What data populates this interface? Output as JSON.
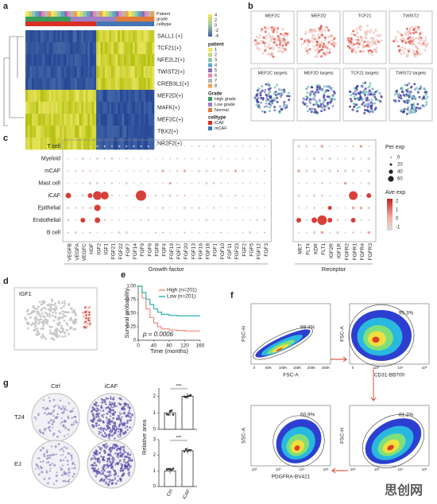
{
  "panels": {
    "a": {
      "label": "a",
      "annotation_labels": [
        "Patient",
        "grade",
        "celltype"
      ],
      "row_labels": [
        "SALL1 (+)",
        "TCF21(+)",
        "NFE2L2(+)",
        "TWIST2(+)",
        "CREB3L1(+)",
        "MEF2D(+)",
        "MAFK(+)",
        "MEF2C(+)",
        "TBX2(+)",
        "NR2F2(+)"
      ],
      "scale_ticks": [
        4,
        2,
        0,
        -2,
        -4
      ],
      "patient_title": "patient",
      "patients": [
        "1",
        "2",
        "3",
        "4",
        "5",
        "6",
        "7",
        "8"
      ],
      "grade_title": "Grade",
      "grades": [
        "High grade",
        "Low grade",
        "Normal"
      ],
      "celltype_title": "celltype",
      "celltypes": [
        "iCAF",
        "mCAF"
      ]
    },
    "b": {
      "label": "b",
      "titles": [
        "MEF2C",
        "MEF2D",
        "TCF21",
        "TWIST2",
        "MEF2C targets",
        "MEF2D targets",
        "TCF21 targets",
        "TWIST2 targets"
      ]
    },
    "c": {
      "label": "c",
      "rows": [
        "T cell",
        "Myeloid",
        "mCAF",
        "Mast cell",
        "iCAF",
        "Epithelial",
        "Endothelial",
        "B cell"
      ],
      "growth_factors": [
        "VEGFB",
        "VEGFA",
        "VEGFC",
        "HGF",
        "IGF2",
        "IGF1",
        "FGF21",
        "FGF22",
        "FGF7",
        "FGF14",
        "FGF9",
        "FGF6",
        "FGF8",
        "FGF4",
        "FGF19",
        "FGF17",
        "FGF20",
        "FGF13",
        "FGF16",
        "FGF18",
        "FGF1",
        "FGF10",
        "FGF11",
        "FGF23",
        "FGF2",
        "FGF5",
        "FGF12",
        "FGF3"
      ],
      "receptors": [
        "MET",
        "FLT4",
        "KDR",
        "FLT1",
        "IGF2R",
        "IGF1R",
        "FGFR2",
        "FGFR1",
        "FGFR4",
        "FGFR3"
      ],
      "group_growth": "Growth factor",
      "group_receptor": "Receptor",
      "size_title": "Per exp",
      "size_ticks": [
        0,
        20,
        40,
        60
      ],
      "color_title": "Ave exp",
      "color_ticks": [
        2,
        1,
        0,
        -1
      ]
    },
    "d": {
      "label": "d",
      "gene": "IGF1"
    },
    "e": {
      "label": "e",
      "ylabel": "Survival probability",
      "xlabel": "Time (months)",
      "pvalue": "p = 0.0006",
      "xlim": [
        0,
        160
      ],
      "xticks": [
        0,
        40,
        80,
        120,
        160
      ],
      "ylim": [
        0,
        1
      ],
      "yticks": [
        0,
        {
          "value": 0.25,
          "label": "0.25"
        },
        {
          "value": 0.5,
          "label": "0.50"
        },
        {
          "value": 0.75,
          "label": "0.75"
        },
        {
          "value": 1,
          "label": "1.00"
        }
      ],
      "x": [
        0,
        10,
        20,
        30,
        40,
        50,
        60,
        80,
        100,
        120,
        160
      ],
      "series": [
        {
          "name": "High (n=201)",
          "color": "#f08a80",
          "values": [
            1,
            0.78,
            0.58,
            0.42,
            0.32,
            0.25,
            0.21,
            0.19,
            0.18,
            0.17,
            0.17
          ]
        },
        {
          "name": "Low (n=201)",
          "color": "#2bb5ad",
          "values": [
            1,
            0.88,
            0.76,
            0.66,
            0.58,
            0.52,
            0.48,
            0.46,
            0.45,
            0.45,
            0.45
          ]
        }
      ]
    },
    "f": {
      "label": "f",
      "plots": [
        {
          "ylabel": "FSC-H",
          "xlabel": "FSC-A",
          "percent": "98.4%",
          "xticks": [
            "0",
            "50K",
            "100K",
            "150K",
            "200K",
            "250K"
          ]
        },
        {
          "ylabel": "FSC-A",
          "xlabel": "CD31-BB700",
          "percent": "95.3%",
          "xticks": [
            "0",
            "10³",
            "10⁴",
            "10⁵"
          ]
        },
        {
          "ylabel": "FSC-H",
          "xlabel": "",
          "percent": "81.2%",
          "xticks": [
            "10²",
            "10³",
            "10⁴",
            "10⁵"
          ]
        },
        {
          "ylabel": "SSC-A",
          "xlabel": "PDGFRA-BV421",
          "percent": "60.9%",
          "xticks": [
            "10²",
            "10³",
            "10⁴",
            "10⁵"
          ]
        }
      ]
    },
    "g": {
      "label": "g",
      "columns": [
        "Ctrl",
        "iCAF"
      ],
      "rows": [
        "T24",
        "EJ"
      ],
      "ylabel": "Relative area",
      "significance": "***",
      "charts": [
        {
          "ylim": [
            0,
            2.5
          ],
          "yticks": [
            0,
            1,
            2
          ],
          "values": [
            1.0,
            2.0
          ]
        },
        {
          "ylim": [
            0,
            3
          ],
          "yticks": [
            0,
            1,
            2,
            3
          ],
          "values": [
            1.0,
            2.3
          ]
        }
      ]
    },
    "watermark": "思创网"
  }
}
